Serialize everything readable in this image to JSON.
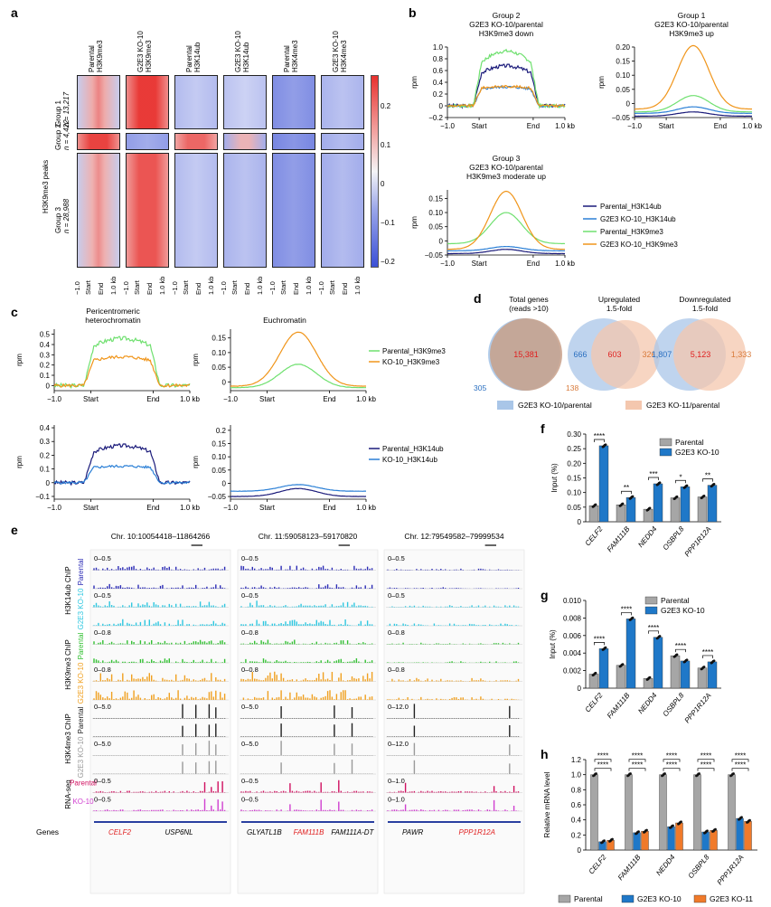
{
  "panels": {
    "a": "a",
    "b": "b",
    "c": "c",
    "d": "d",
    "e": "e",
    "f": "f",
    "g": "g",
    "h": "h"
  },
  "a": {
    "columns": [
      "Parental\nH3K9me3",
      "G2E3 KO-10\nH3K9me3",
      "Parental\nH3K14ub",
      "G2E3 KO-10\nH3K14ub",
      "Parental\nH3K4me3",
      "G2E3 KO-10\nH3K4me3"
    ],
    "col_line1": [
      "Parental",
      "G2E3 KO-10",
      "Parental",
      "G2E3 KO-10",
      "Parental",
      "G2E3 KO-10"
    ],
    "col_line2": [
      "H3K9me3",
      "H3K9me3",
      "H3K14ub",
      "H3K14ub",
      "H3K4me3",
      "H3K4me3"
    ],
    "peaks_label": "H3K9me3 peaks",
    "groups": [
      {
        "name": "Group 1",
        "n": "n = 13,217"
      },
      {
        "name": "Group 2",
        "n": "n = 4,422"
      },
      {
        "name": "Group 3",
        "n": "n = 28,988"
      }
    ],
    "x_ticks": [
      "−1.0",
      "Start",
      "End",
      "1.0 kb"
    ],
    "colorbar_ticks": [
      "0.2",
      "0.1",
      "0",
      "−0.1",
      "−0.2"
    ],
    "colors": {
      "red": "#e8312e",
      "blue": "#3b50d6",
      "white": "#f4f4f6"
    }
  },
  "b": {
    "titles": [
      [
        "Group 2",
        "G2E3 KO-10/parental",
        "H3K9me3 down"
      ],
      [
        "Group 1",
        "G2E3 KO-10/parental",
        "H3K9me3 up"
      ],
      [
        "Group 3",
        "G2E3 KO-10/parental",
        "H3K9me3 moderate up"
      ]
    ],
    "ylabel": "rpm",
    "x_ticks": [
      "−1.0",
      "Start",
      "End",
      "1.0 kb"
    ],
    "yticks": [
      [
        "1.0",
        "0.8",
        "0.6",
        "0.4",
        "0.2",
        "0",
        "−0.2"
      ],
      [
        "0.20",
        "0.15",
        "0.10",
        "0.05",
        "0",
        "−0.05"
      ],
      [
        "0.15",
        "0.10",
        "0.05",
        "0",
        "−0.05"
      ]
    ],
    "legend": [
      {
        "label": "Parental_H3K14ub",
        "color": "#1a1a7a"
      },
      {
        "label": "G2E3 KO-10_H3K14ub",
        "color": "#2a7fd6"
      },
      {
        "label": "Parental_H3K9me3",
        "color": "#6fe06f"
      },
      {
        "label": "G2E3 KO-10_H3K9me3",
        "color": "#f0951a"
      }
    ]
  },
  "c": {
    "titles": [
      "Pericentromeric\nheterochromatin",
      "Euchromatin"
    ],
    "title1_l1": "Pericentromeric",
    "title1_l2": "heterochromatin",
    "title2": "Euchromatin",
    "ylabel": "rpm",
    "x_ticks": [
      "−1.0",
      "Start",
      "End",
      "1.0 kb"
    ],
    "yticks_top_left": [
      "0.5",
      "0.4",
      "0.3",
      "0.2",
      "0.1",
      "0"
    ],
    "yticks_top_right": [
      "0.15",
      "0.10",
      "0.05",
      "0"
    ],
    "yticks_bot_left": [
      "0.4",
      "0.3",
      "0.2",
      "0.1",
      "0",
      "−0.1"
    ],
    "yticks_bot_right": [
      "0.2",
      "0.15",
      "0.10",
      "0.05",
      "0",
      "−0.05"
    ],
    "legend_top": [
      {
        "label": "Parental_H3K9me3",
        "color": "#6fe06f"
      },
      {
        "label": "KO-10_H3K9me3",
        "color": "#f0951a"
      }
    ],
    "legend_bot": [
      {
        "label": "Parental_H3K14ub",
        "color": "#1a1a7a"
      },
      {
        "label": "KO-10_H3K14ub",
        "color": "#2a7fd6"
      }
    ]
  },
  "d": {
    "titles": [
      [
        "Total genes",
        "(reads >10)"
      ],
      [
        "Upregulated",
        "1.5-fold"
      ],
      [
        "Downregulated",
        "1.5-fold"
      ]
    ],
    "venn1": {
      "left": "305",
      "center": "15,381",
      "right": "138"
    },
    "venn2": {
      "left": "666",
      "center": "603",
      "right": "326"
    },
    "venn3": {
      "left": "1,807",
      "center": "5,123",
      "right": "1,333"
    },
    "legend": [
      {
        "label": "G2E3 KO-10/parental",
        "color": "#a9c6e8"
      },
      {
        "label": "G2E3 KO-11/parental",
        "color": "#f4c7ae"
      }
    ]
  },
  "e": {
    "regions": [
      "Chr. 10:10054418–11864266",
      "Chr. 11:59058123–59170820",
      "Chr. 12:79549582–79999534"
    ],
    "groups": [
      {
        "assay": "H3K14ub ChIP",
        "samples": [
          "Parental",
          "G2E3 KO-10"
        ],
        "colors": [
          "#2b2bb5",
          "#2fc7e0"
        ]
      },
      {
        "assay": "H3K9me3 ChIP",
        "samples": [
          "Parental",
          "G2E3 KO-10"
        ],
        "colors": [
          "#33c033",
          "#f0a020"
        ]
      },
      {
        "assay": "H3K4me3 ChIP",
        "samples": [
          "Parental",
          "G2E3 KO-10"
        ],
        "colors": [
          "#222222",
          "#9a9a9a"
        ]
      },
      {
        "assay": "RNA-seq",
        "samples": [
          "Parental",
          "KO-10"
        ],
        "colors": [
          "#d01060",
          "#d040d0"
        ]
      }
    ],
    "ranges": [
      [
        "0–0.5",
        "0–0.5",
        "0–0.5"
      ],
      [
        "0–0.5",
        "0–0.5",
        "0–0.5"
      ],
      [
        "0–0.8",
        "0–0.8",
        "0–0.8"
      ],
      [
        "0–0.8",
        "0–0.8",
        "0–0.8"
      ],
      [
        "0–5.0",
        "0–5.0",
        "0–12.0"
      ],
      [
        "0–5.0",
        "0–5.0",
        "0–12.0"
      ],
      [
        "0–0.5",
        "0–0.5",
        "0–1.0"
      ],
      [
        "0–0.5",
        "0–0.5",
        "0–1.0"
      ]
    ],
    "genes_label": "Genes",
    "genes": [
      [
        {
          "name": "CELF2",
          "color": "#e02020"
        },
        {
          "name": "USP6NL",
          "color": "#000"
        }
      ],
      [
        {
          "name": "GLYATL1B",
          "color": "#000"
        },
        {
          "name": "FAM111B",
          "color": "#e02020"
        },
        {
          "name": "FAM111A-DT",
          "color": "#000"
        }
      ],
      [
        {
          "name": "PAWR",
          "color": "#000"
        },
        {
          "name": "PPP1R12A",
          "color": "#e02020"
        }
      ]
    ]
  },
  "f": {
    "ylabel": "Input (%)",
    "yticks": [
      "0.30",
      "0.25",
      "0.20",
      "0.15",
      "0.10",
      "0.05",
      "0"
    ],
    "legend": [
      "Parental",
      "G2E3 KO-10"
    ],
    "chart_data": {
      "type": "bar",
      "categories": [
        "CELF2",
        "FAM111B",
        "NEDD4",
        "OSBPL8",
        "PPP1R12A"
      ],
      "series": [
        {
          "name": "Parental",
          "values": [
            0.055,
            0.058,
            0.043,
            0.082,
            0.085
          ]
        },
        {
          "name": "G2E3 KO-10",
          "values": [
            0.26,
            0.083,
            0.13,
            0.12,
            0.125
          ]
        }
      ],
      "ylim": [
        0,
        0.3
      ],
      "significance": [
        "****",
        "**",
        "***",
        "*",
        "**"
      ]
    }
  },
  "g": {
    "ylabel": "Input (%)",
    "yticks": [
      "0.010",
      "0.008",
      "0.006",
      "0.004",
      "0.002",
      "0"
    ],
    "legend": [
      "Parental",
      "G2E3 KO-10"
    ],
    "chart_data": {
      "type": "bar",
      "categories": [
        "CELF2",
        "FAM111B",
        "NEDD4",
        "OSBPL8",
        "PPP1R12A"
      ],
      "series": [
        {
          "name": "Parental",
          "values": [
            0.0016,
            0.0026,
            0.0011,
            0.0037,
            0.0023
          ]
        },
        {
          "name": "G2E3 KO-10",
          "values": [
            0.0045,
            0.0079,
            0.0058,
            0.0031,
            0.003
          ]
        }
      ],
      "ylim": [
        0,
        0.01
      ],
      "significance": [
        "****",
        "****",
        "****",
        "****",
        "****"
      ]
    }
  },
  "h": {
    "ylabel": "Relative mRNA level",
    "yticks": [
      "1.2",
      "1.0",
      "0.8",
      "0.6",
      "0.4",
      "0.2",
      "0"
    ],
    "legend": [
      "Parental",
      "G2E3 KO-10",
      "G2E3 KO-11"
    ],
    "chart_data": {
      "type": "bar",
      "categories": [
        "CELF2",
        "FAM111B",
        "NEDD4",
        "OSBPL8",
        "PPP1R12A"
      ],
      "series": [
        {
          "name": "Parental",
          "values": [
            1.0,
            1.0,
            1.0,
            1.0,
            1.0
          ]
        },
        {
          "name": "G2E3 KO-10",
          "values": [
            0.11,
            0.23,
            0.31,
            0.24,
            0.42
          ]
        },
        {
          "name": "G2E3 KO-11",
          "values": [
            0.13,
            0.25,
            0.36,
            0.26,
            0.38
          ]
        }
      ],
      "ylim": [
        0,
        1.2
      ],
      "significance": [
        "****",
        "****",
        "****",
        "****",
        "****"
      ]
    }
  }
}
